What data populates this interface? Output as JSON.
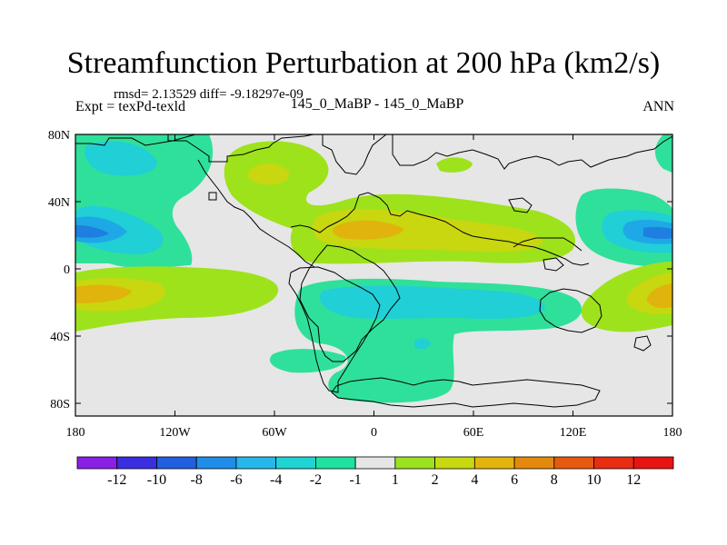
{
  "title": "Streamfunction Perturbation at 200 hPa (km2/s)",
  "stats": "rmsd= 2.13529 diff= -9.18297e-09",
  "left_label": "Expt = texPd-texld",
  "center_label": "145_0_MaBP - 145_0_MaBP",
  "right_label": "ANN",
  "lon_ticks": [
    "180",
    "120W",
    "60W",
    "0",
    "60E",
    "120E",
    "180"
  ],
  "lat_ticks": [
    "80N",
    "40N",
    "0",
    "40S",
    "80S"
  ],
  "colorbar": {
    "labels": [
      "-12",
      "-10",
      "-8",
      "-6",
      "-4",
      "-2",
      "-1",
      "1",
      "2",
      "4",
      "6",
      "8",
      "10",
      "12"
    ],
    "colors": [
      "#8a1fe6",
      "#3a2ee0",
      "#1f5fe0",
      "#1f8ee8",
      "#27b7ec",
      "#1fd4d4",
      "#1fe2a0",
      "#e6e6e6",
      "#9be21f",
      "#c7d90f",
      "#e3b40c",
      "#e5890d",
      "#e65a10",
      "#e82d12",
      "#e81414"
    ]
  },
  "map": {
    "background_color": "#e6e6e6",
    "neg1_color": "#2fe09a",
    "neg2_color": "#21cfd6",
    "neg4_color": "#1fa8e6",
    "neg8_color": "#1e7fe0",
    "pos1_color": "#9ee21c",
    "pos2_color": "#c8d70f",
    "pos4_color": "#e0b40c"
  }
}
